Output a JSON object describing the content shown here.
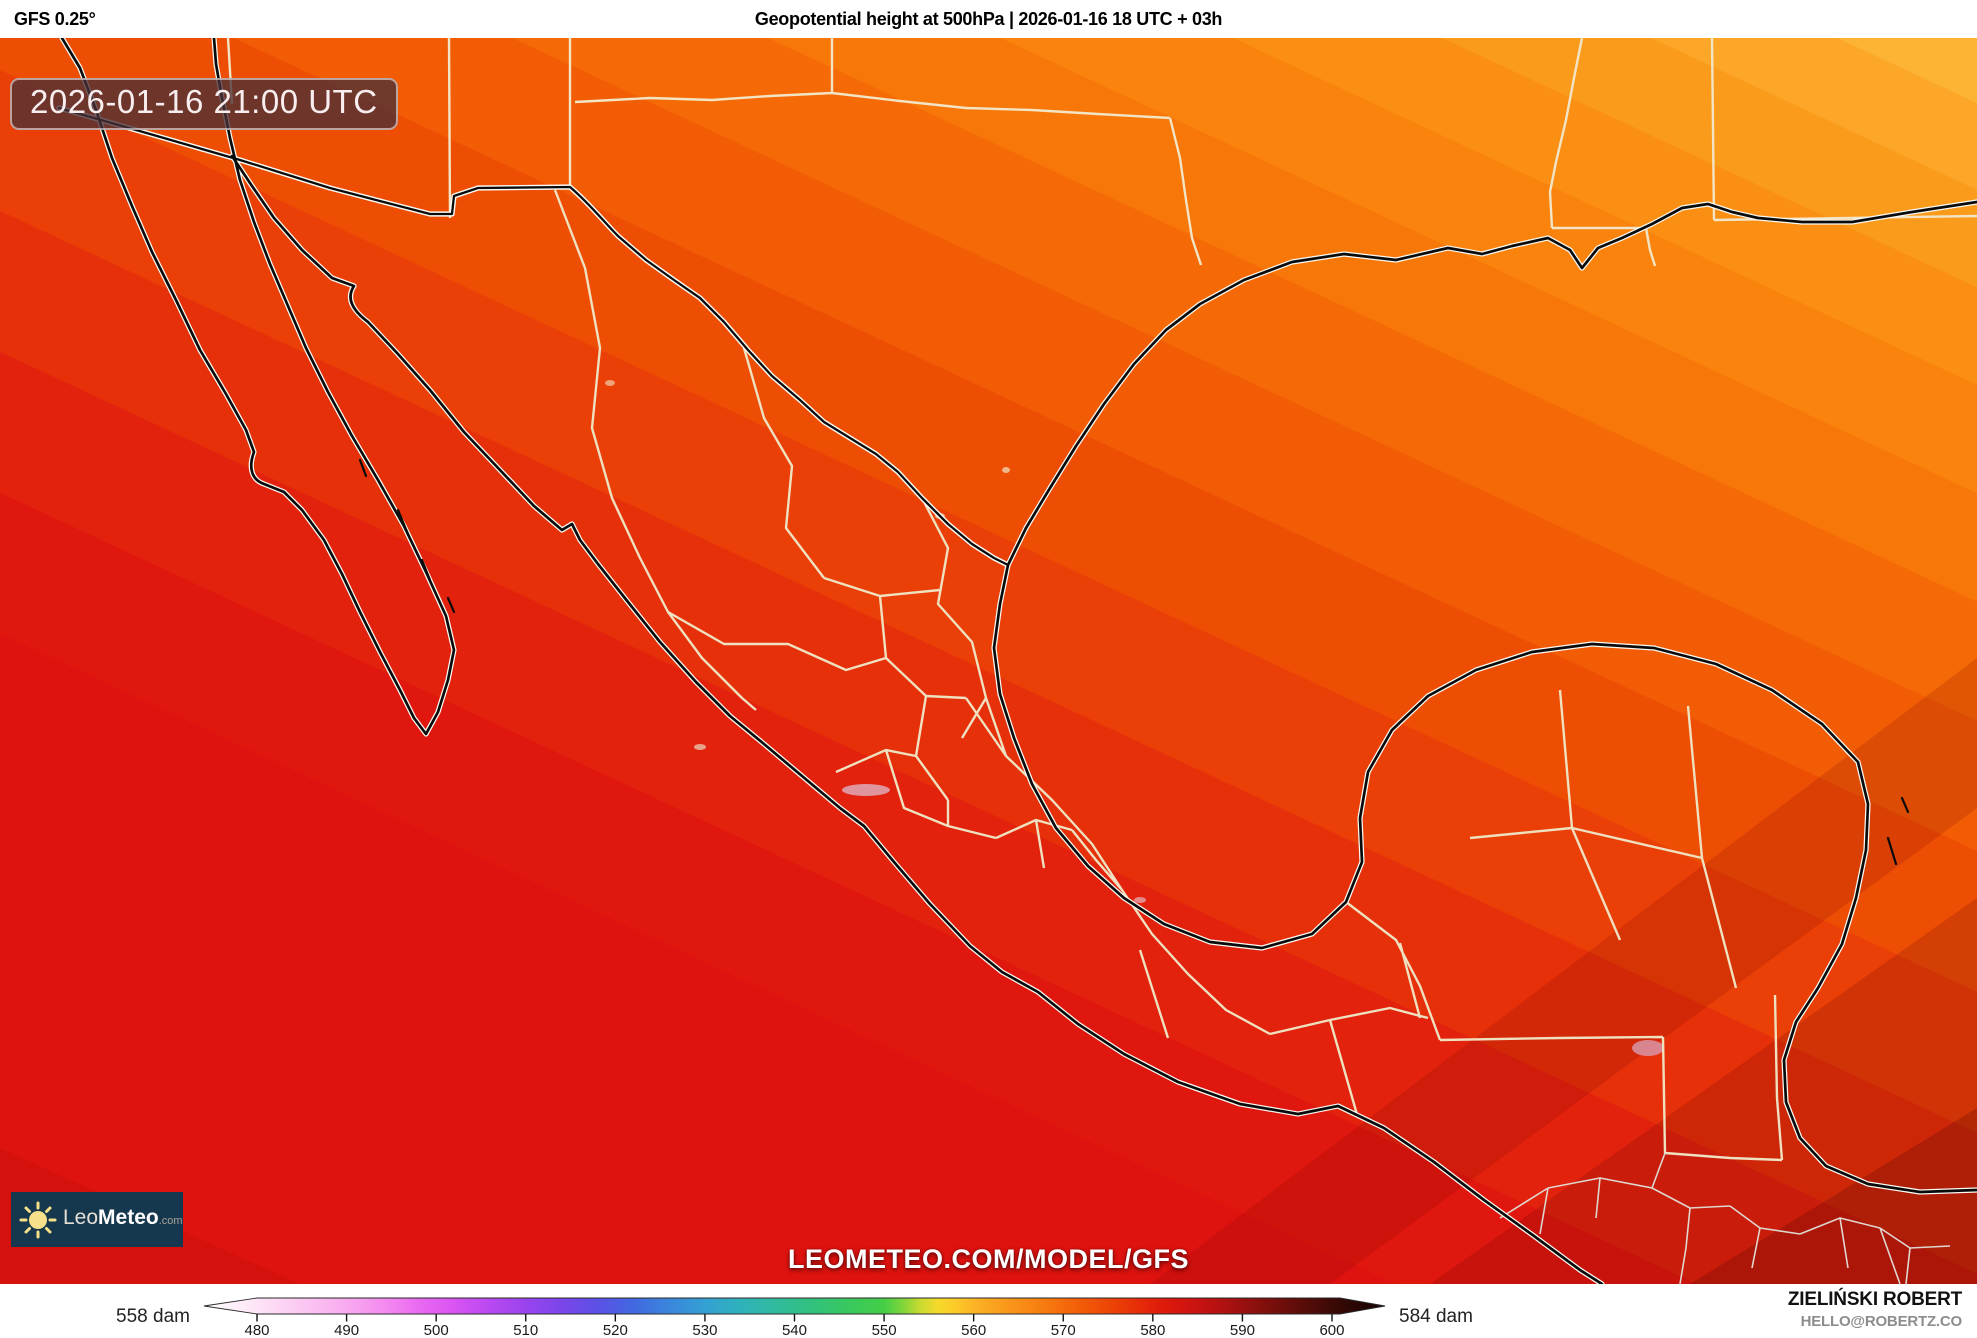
{
  "header": {
    "model": "GFS 0.25°",
    "title": "Geopotential height at 500hPa | 2026-01-16 18 UTC + 03h"
  },
  "map": {
    "timestamp": "2026-01-16 21:00 UTC",
    "watermark": "LEOMETEO.COM/MODEL/GFS",
    "logo": {
      "prefix": "Leo",
      "bold": "Meteo",
      "tld": ".com"
    },
    "bands": [
      {
        "color": "#fdb434",
        "to": 3
      },
      {
        "color": "#fca728",
        "to": 7
      },
      {
        "color": "#fb9b1c",
        "to": 11.5
      },
      {
        "color": "#fa8f14",
        "to": 16
      },
      {
        "color": "#f9830d",
        "to": 21
      },
      {
        "color": "#f77708",
        "to": 26
      },
      {
        "color": "#f56a06",
        "to": 31.5
      },
      {
        "color": "#f25c05",
        "to": 37.5
      },
      {
        "color": "#ee4e04",
        "to": 44
      },
      {
        "color": "#ea3f06",
        "to": 50.5
      },
      {
        "color": "#e63009",
        "to": 57
      },
      {
        "color": "#e2220c",
        "to": 63.5
      },
      {
        "color": "#e0170e",
        "to": 70
      },
      {
        "color": "#de120f",
        "to": 100
      }
    ]
  },
  "colorbar": {
    "min_label": "558 dam",
    "max_label": "584 dam",
    "unit": "dam",
    "ticks": [
      "480",
      "490",
      "500",
      "510",
      "520",
      "530",
      "540",
      "550",
      "560",
      "570",
      "580",
      "590",
      "600"
    ],
    "tick_values": [
      480,
      490,
      500,
      510,
      520,
      530,
      540,
      550,
      560,
      570,
      580,
      590,
      600
    ],
    "stops": [
      {
        "v": 474,
        "c": "#ffffff"
      },
      {
        "v": 478,
        "c": "#feeef9"
      },
      {
        "v": 482,
        "c": "#fcd9f4"
      },
      {
        "v": 486,
        "c": "#fac2f1"
      },
      {
        "v": 490,
        "c": "#f8aaf0"
      },
      {
        "v": 494,
        "c": "#f48cef"
      },
      {
        "v": 498,
        "c": "#ea6af1"
      },
      {
        "v": 502,
        "c": "#d854f3"
      },
      {
        "v": 506,
        "c": "#b949f1"
      },
      {
        "v": 510,
        "c": "#9a44ee"
      },
      {
        "v": 514,
        "c": "#7b46ea"
      },
      {
        "v": 518,
        "c": "#5c50e5"
      },
      {
        "v": 522,
        "c": "#4168e1"
      },
      {
        "v": 526,
        "c": "#3b86dc"
      },
      {
        "v": 530,
        "c": "#33a0d4"
      },
      {
        "v": 534,
        "c": "#2fb2bb"
      },
      {
        "v": 538,
        "c": "#30bb9d"
      },
      {
        "v": 542,
        "c": "#32c17e"
      },
      {
        "v": 546,
        "c": "#38c85f"
      },
      {
        "v": 550,
        "c": "#44ce46"
      },
      {
        "v": 552,
        "c": "#7cd53a"
      },
      {
        "v": 554,
        "c": "#c8da31"
      },
      {
        "v": 556,
        "c": "#f6d92b"
      },
      {
        "v": 558,
        "c": "#fcc928"
      },
      {
        "v": 560,
        "c": "#fcb424"
      },
      {
        "v": 563,
        "c": "#fa9d1d"
      },
      {
        "v": 566,
        "c": "#f88815"
      },
      {
        "v": 569,
        "c": "#f6730d"
      },
      {
        "v": 572,
        "c": "#f25c07"
      },
      {
        "v": 575,
        "c": "#ed4605"
      },
      {
        "v": 578,
        "c": "#e73008"
      },
      {
        "v": 581,
        "c": "#df1b0b"
      },
      {
        "v": 584,
        "c": "#d01411"
      },
      {
        "v": 587,
        "c": "#b81211"
      },
      {
        "v": 590,
        "c": "#9a100f"
      },
      {
        "v": 593,
        "c": "#7c0f0c"
      },
      {
        "v": 596,
        "c": "#600d09"
      },
      {
        "v": 600,
        "c": "#3c0a06"
      },
      {
        "v": 604,
        "c": "#200504"
      }
    ]
  },
  "credits": {
    "name": "ZIELIŃSKI ROBERT",
    "email": "HELLO@ROBERTZ.CO"
  }
}
